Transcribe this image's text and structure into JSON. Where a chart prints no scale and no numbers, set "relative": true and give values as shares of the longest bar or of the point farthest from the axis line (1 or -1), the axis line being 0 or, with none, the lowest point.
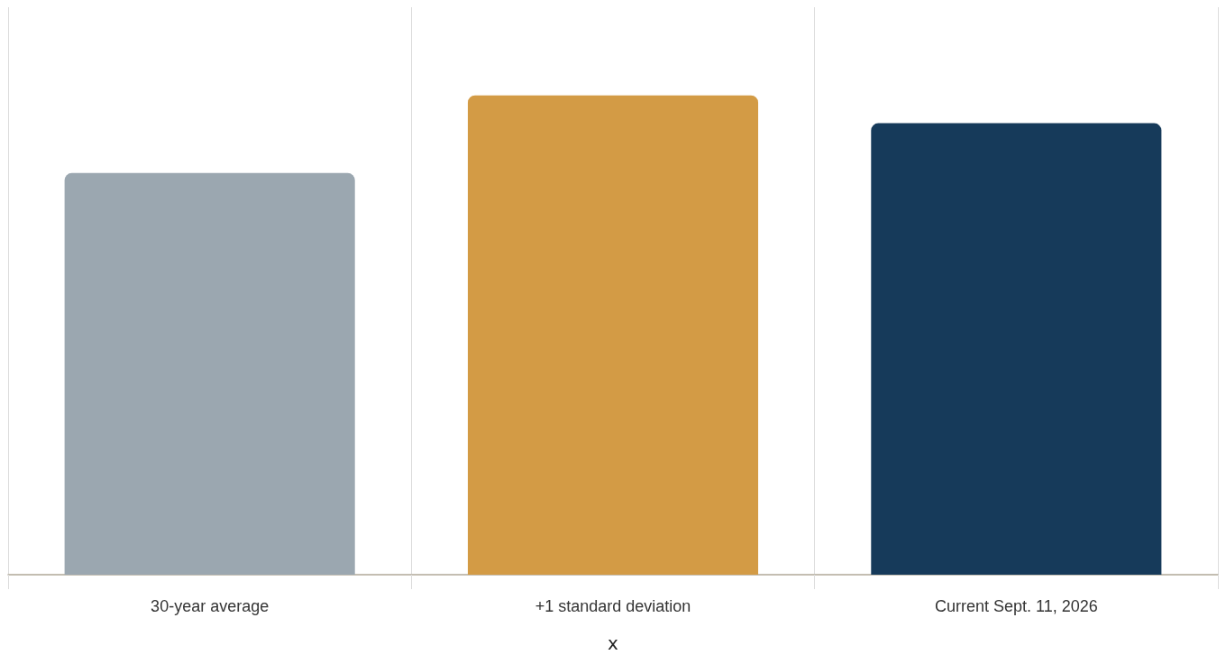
{
  "chart_data": {
    "type": "bar",
    "xlabel": "x",
    "relative": true,
    "grid": "x",
    "categories": [
      "30-year average",
      "+1 standard deviation",
      "Current Sept. 11, 2026"
    ],
    "values": [
      0.838,
      1,
      0.942
    ],
    "colors": [
      "#9ba7b0",
      "#d39b45",
      "#163a5a"
    ]
  }
}
